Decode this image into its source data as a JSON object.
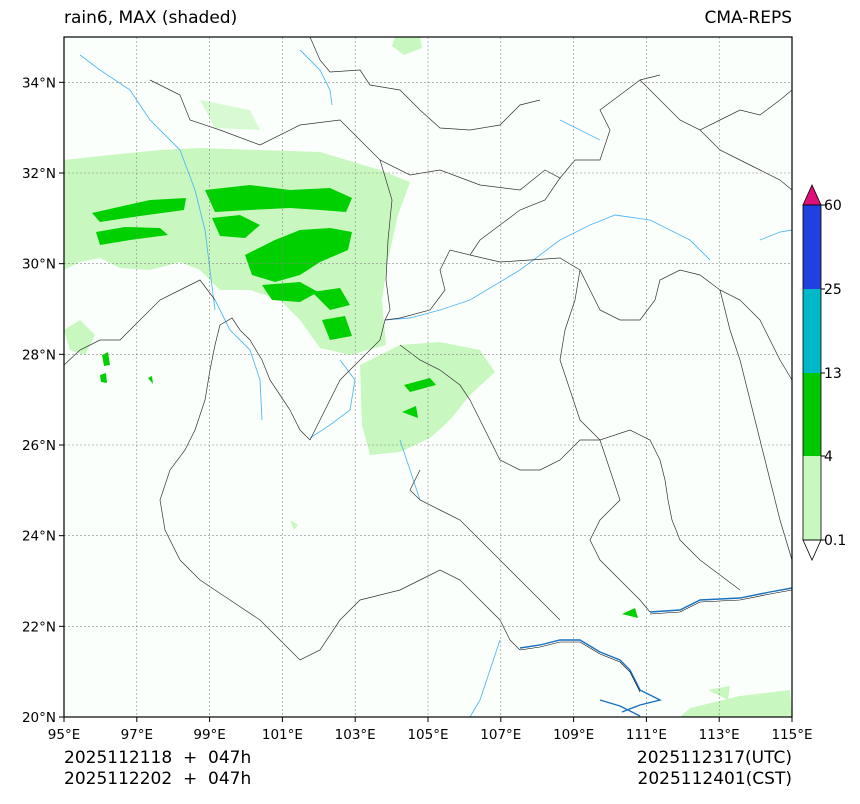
{
  "header": {
    "title_left": "rain6, MAX (shaded)",
    "title_right": "CMA-REPS"
  },
  "map": {
    "lon_range": [
      95,
      115
    ],
    "lat_range": [
      20,
      35
    ],
    "x_ticks": [
      "95°E",
      "97°E",
      "99°E",
      "101°E",
      "103°E",
      "105°E",
      "107°E",
      "109°E",
      "111°E",
      "113°E",
      "115°E"
    ],
    "y_ticks": [
      "20°N",
      "22°N",
      "24°N",
      "26°N",
      "28°N",
      "30°N",
      "32°N",
      "34°N"
    ],
    "gridlines": true
  },
  "colorbar": {
    "levels": [
      "0.1",
      "4",
      "13",
      "25",
      "60"
    ],
    "colors": {
      "under": "#ffffff",
      "band_0_1_4": "#c8f8c0",
      "band_4_13": "#00c800",
      "band_13_25": "#00b8c8",
      "band_25_60": "#2040e0",
      "over": "#e0107a"
    }
  },
  "footer": {
    "init_utc": "2025112118  +  047h",
    "init_cst": "2025112202  +  047h",
    "valid_utc": "2025112317(UTC)",
    "valid_cst": "2025112401(CST)"
  }
}
